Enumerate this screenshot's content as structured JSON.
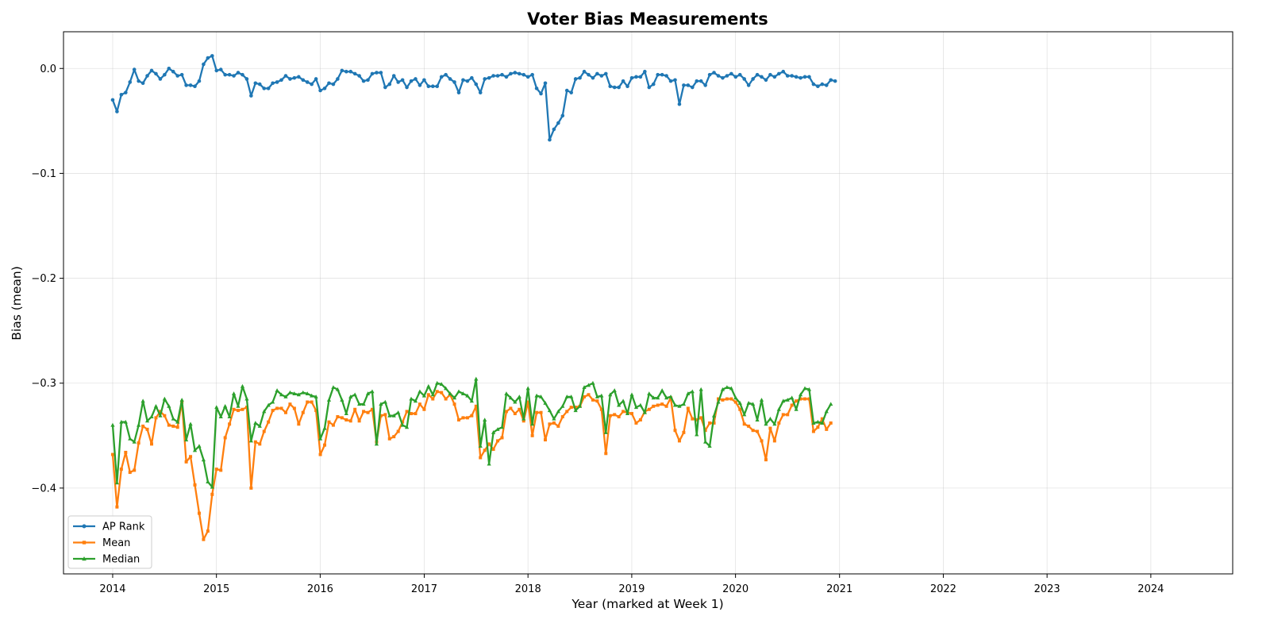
{
  "chart_data": {
    "type": "line",
    "title": "Voter Bias Measurements",
    "xlabel": "Year (marked at Week 1)",
    "ylabel": "Bias (mean)",
    "xlim": [
      "2013-07-12",
      "2024-10-15"
    ],
    "ylim": [
      -0.4818,
      0.035
    ],
    "x_ticks": [
      "2014",
      "2015",
      "2016",
      "2017",
      "2018",
      "2019",
      "2020",
      "2021",
      "2022",
      "2023",
      "2024"
    ],
    "y_ticks": [
      "0.0",
      "−0.1",
      "−0.2",
      "−0.3",
      "−0.4"
    ],
    "x_start": "2014-01-01",
    "x_step_months": 0.5,
    "grid": true,
    "legend_position": "lower-left",
    "series": [
      {
        "name": "AP Rank",
        "color": "#1f77b4",
        "marker": "circle",
        "values": [
          -0.03,
          -0.041,
          -0.025,
          -0.023,
          -0.013,
          -0.001,
          -0.012,
          -0.014,
          -0.007,
          -0.002,
          -0.005,
          -0.01,
          -0.006,
          0.0,
          -0.003,
          -0.007,
          -0.006,
          -0.016,
          -0.016,
          -0.017,
          -0.012,
          0.004,
          0.01,
          0.012,
          -0.002,
          -0.001,
          -0.006,
          -0.006,
          -0.007,
          -0.004,
          -0.006,
          -0.01,
          -0.026,
          -0.014,
          -0.015,
          -0.019,
          -0.019,
          -0.014,
          -0.013,
          -0.011,
          -0.007,
          -0.01,
          -0.009,
          -0.008,
          -0.011,
          -0.013,
          -0.015,
          -0.01,
          -0.021,
          -0.019,
          -0.014,
          -0.015,
          -0.01,
          -0.002,
          -0.003,
          -0.003,
          -0.005,
          -0.007,
          -0.012,
          -0.011,
          -0.005,
          -0.004,
          -0.004,
          -0.018,
          -0.015,
          -0.007,
          -0.013,
          -0.011,
          -0.018,
          -0.012,
          -0.01,
          -0.016,
          -0.011,
          -0.017,
          -0.017,
          -0.017,
          -0.008,
          -0.006,
          -0.01,
          -0.013,
          -0.023,
          -0.011,
          -0.012,
          -0.009,
          -0.015,
          -0.023,
          -0.01,
          -0.009,
          -0.007,
          -0.007,
          -0.006,
          -0.008,
          -0.005,
          -0.004,
          -0.005,
          -0.006,
          -0.008,
          -0.006,
          -0.019,
          -0.024,
          -0.014,
          -0.068,
          -0.058,
          -0.052,
          -0.045,
          -0.021,
          -0.023,
          -0.01,
          -0.009,
          -0.003,
          -0.006,
          -0.009,
          -0.005,
          -0.007,
          -0.005,
          -0.017,
          -0.018,
          -0.018,
          -0.012,
          -0.017,
          -0.009,
          -0.008,
          -0.008,
          -0.003,
          -0.018,
          -0.015,
          -0.006,
          -0.006,
          -0.007,
          -0.012,
          -0.011,
          -0.034,
          -0.016,
          -0.016,
          -0.018,
          -0.012,
          -0.012,
          -0.016,
          -0.006,
          -0.004,
          -0.007,
          -0.009,
          -0.007,
          -0.005,
          -0.008,
          -0.006,
          -0.01,
          -0.016,
          -0.01,
          -0.006,
          -0.008,
          -0.011,
          -0.006,
          -0.008,
          -0.005,
          -0.003,
          -0.007,
          -0.007,
          -0.008,
          -0.009,
          -0.008,
          -0.008,
          -0.015,
          -0.017,
          -0.015,
          -0.016,
          -0.011,
          -0.012
        ]
      },
      {
        "name": "Mean",
        "color": "#ff7f0e",
        "marker": "square",
        "values": [
          -0.368,
          -0.418,
          -0.382,
          -0.366,
          -0.385,
          -0.383,
          -0.357,
          -0.341,
          -0.344,
          -0.358,
          -0.333,
          -0.327,
          -0.331,
          -0.34,
          -0.341,
          -0.342,
          -0.318,
          -0.375,
          -0.37,
          -0.397,
          -0.424,
          -0.449,
          -0.441,
          -0.406,
          -0.382,
          -0.383,
          -0.352,
          -0.339,
          -0.325,
          -0.326,
          -0.325,
          -0.323,
          -0.4,
          -0.356,
          -0.358,
          -0.346,
          -0.337,
          -0.326,
          -0.324,
          -0.324,
          -0.328,
          -0.32,
          -0.324,
          -0.339,
          -0.328,
          -0.318,
          -0.318,
          -0.326,
          -0.368,
          -0.359,
          -0.337,
          -0.34,
          -0.332,
          -0.333,
          -0.335,
          -0.336,
          -0.325,
          -0.336,
          -0.327,
          -0.328,
          -0.325,
          -0.356,
          -0.331,
          -0.33,
          -0.353,
          -0.351,
          -0.346,
          -0.337,
          -0.327,
          -0.329,
          -0.329,
          -0.32,
          -0.325,
          -0.311,
          -0.315,
          -0.308,
          -0.309,
          -0.315,
          -0.311,
          -0.32,
          -0.335,
          -0.333,
          -0.333,
          -0.331,
          -0.322,
          -0.371,
          -0.364,
          -0.358,
          -0.363,
          -0.355,
          -0.352,
          -0.327,
          -0.324,
          -0.329,
          -0.325,
          -0.336,
          -0.318,
          -0.35,
          -0.328,
          -0.328,
          -0.354,
          -0.339,
          -0.338,
          -0.341,
          -0.332,
          -0.327,
          -0.323,
          -0.323,
          -0.322,
          -0.313,
          -0.311,
          -0.316,
          -0.317,
          -0.325,
          -0.367,
          -0.331,
          -0.33,
          -0.332,
          -0.327,
          -0.328,
          -0.329,
          -0.338,
          -0.335,
          -0.327,
          -0.325,
          -0.322,
          -0.321,
          -0.32,
          -0.322,
          -0.314,
          -0.345,
          -0.355,
          -0.347,
          -0.324,
          -0.334,
          -0.335,
          -0.333,
          -0.345,
          -0.338,
          -0.338,
          -0.315,
          -0.316,
          -0.315,
          -0.315,
          -0.318,
          -0.325,
          -0.339,
          -0.341,
          -0.345,
          -0.346,
          -0.355,
          -0.373,
          -0.343,
          -0.355,
          -0.338,
          -0.33,
          -0.33,
          -0.321,
          -0.317,
          -0.315,
          -0.315,
          -0.315,
          -0.346,
          -0.342,
          -0.334,
          -0.344,
          -0.338
        ]
      },
      {
        "name": "Median",
        "color": "#2ca02c",
        "marker": "triangle",
        "values": [
          -0.34,
          -0.395,
          -0.337,
          -0.337,
          -0.353,
          -0.356,
          -0.34,
          -0.317,
          -0.336,
          -0.332,
          -0.322,
          -0.331,
          -0.315,
          -0.322,
          -0.334,
          -0.337,
          -0.316,
          -0.354,
          -0.339,
          -0.364,
          -0.36,
          -0.373,
          -0.394,
          -0.399,
          -0.323,
          -0.332,
          -0.322,
          -0.332,
          -0.31,
          -0.322,
          -0.303,
          -0.315,
          -0.355,
          -0.338,
          -0.341,
          -0.327,
          -0.321,
          -0.318,
          -0.307,
          -0.311,
          -0.313,
          -0.309,
          -0.31,
          -0.311,
          -0.309,
          -0.31,
          -0.312,
          -0.313,
          -0.353,
          -0.343,
          -0.316,
          -0.304,
          -0.306,
          -0.316,
          -0.329,
          -0.313,
          -0.311,
          -0.32,
          -0.32,
          -0.31,
          -0.308,
          -0.358,
          -0.32,
          -0.318,
          -0.331,
          -0.331,
          -0.328,
          -0.34,
          -0.342,
          -0.315,
          -0.317,
          -0.308,
          -0.312,
          -0.303,
          -0.311,
          -0.3,
          -0.301,
          -0.305,
          -0.31,
          -0.314,
          -0.308,
          -0.31,
          -0.312,
          -0.317,
          -0.296,
          -0.36,
          -0.335,
          -0.377,
          -0.347,
          -0.344,
          -0.342,
          -0.31,
          -0.314,
          -0.318,
          -0.313,
          -0.334,
          -0.305,
          -0.339,
          -0.312,
          -0.313,
          -0.319,
          -0.326,
          -0.334,
          -0.327,
          -0.322,
          -0.313,
          -0.313,
          -0.326,
          -0.322,
          -0.304,
          -0.302,
          -0.3,
          -0.313,
          -0.312,
          -0.347,
          -0.311,
          -0.307,
          -0.321,
          -0.317,
          -0.329,
          -0.311,
          -0.323,
          -0.321,
          -0.328,
          -0.31,
          -0.314,
          -0.314,
          -0.307,
          -0.314,
          -0.313,
          -0.321,
          -0.322,
          -0.32,
          -0.31,
          -0.308,
          -0.349,
          -0.306,
          -0.356,
          -0.36,
          -0.331,
          -0.318,
          -0.306,
          -0.304,
          -0.305,
          -0.314,
          -0.319,
          -0.33,
          -0.319,
          -0.32,
          -0.335,
          -0.316,
          -0.339,
          -0.334,
          -0.339,
          -0.325,
          -0.317,
          -0.316,
          -0.314,
          -0.325,
          -0.311,
          -0.305,
          -0.306,
          -0.338,
          -0.337,
          -0.338,
          -0.327,
          -0.32
        ]
      }
    ]
  }
}
